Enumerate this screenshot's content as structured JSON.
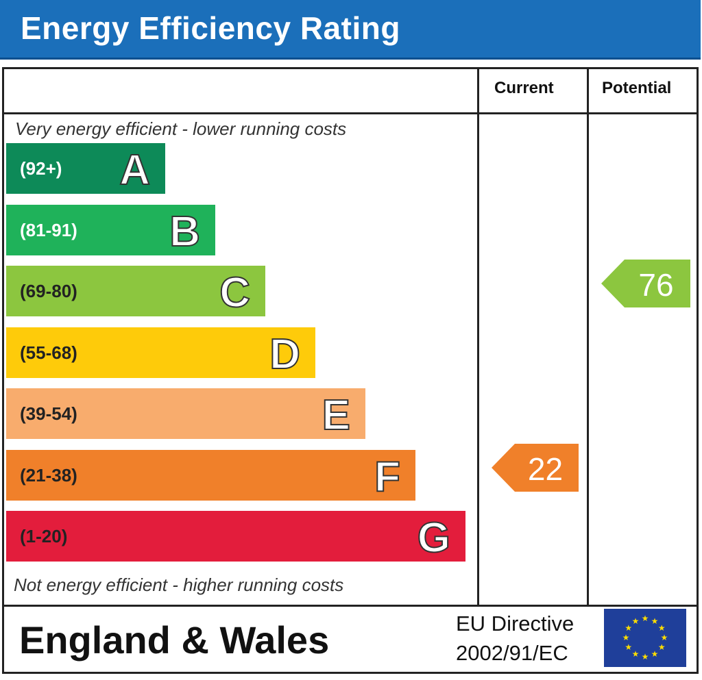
{
  "title": "Energy Efficiency Rating",
  "columns": {
    "current": "Current",
    "potential": "Potential"
  },
  "notes": {
    "top": "Very energy efficient - lower running costs",
    "bottom": "Not energy efficient - higher running costs"
  },
  "footer": {
    "region": "England & Wales",
    "directive_line1": "EU Directive",
    "directive_line2": "2002/91/EC",
    "flag_icon": "eu-flag-icon"
  },
  "chart_data": {
    "type": "bar",
    "categories": [
      "A",
      "B",
      "C",
      "D",
      "E",
      "F",
      "G"
    ],
    "ranges": [
      "(92+)",
      "(81-91)",
      "(69-80)",
      "(55-68)",
      "(39-54)",
      "(21-38)",
      "(1-20)"
    ],
    "colors": [
      "#0d8a58",
      "#1fb25a",
      "#8cc63f",
      "#fecb0a",
      "#f8ac6d",
      "#f0802a",
      "#e31d3c"
    ],
    "range_text_colors": [
      "#ffffff",
      "#ffffff",
      "#222222",
      "#222222",
      "#222222",
      "#222222",
      "#222222"
    ],
    "current": {
      "value": 22,
      "band": "F",
      "color": "#f0802a"
    },
    "potential": {
      "value": 76,
      "band": "C",
      "color": "#8cc63f"
    }
  }
}
